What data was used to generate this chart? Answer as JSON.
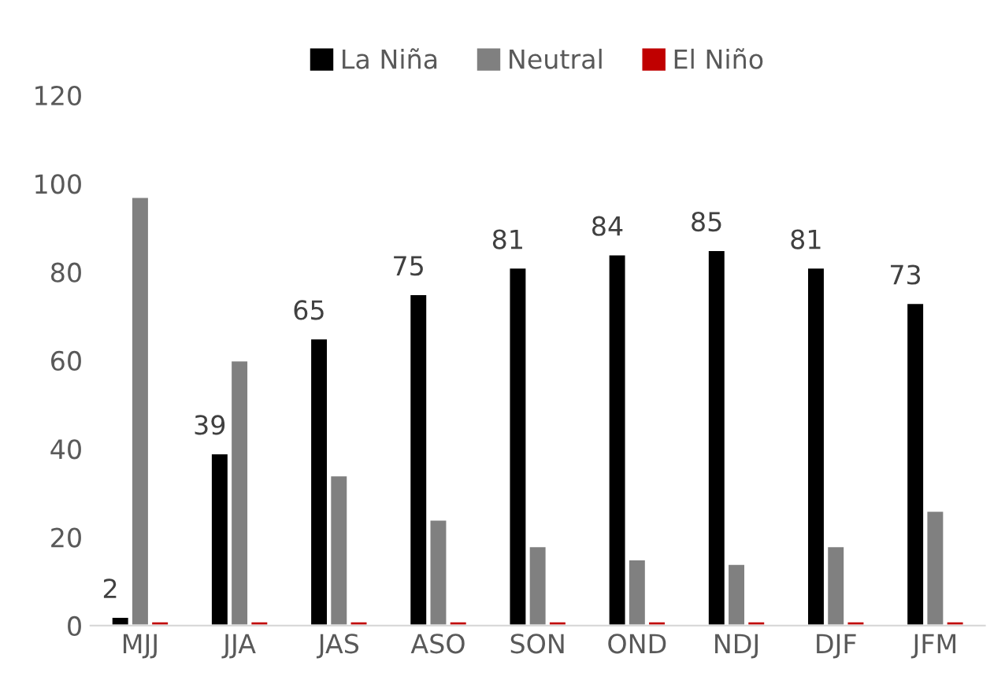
{
  "chart_data": {
    "type": "bar",
    "categories": [
      "MJJ",
      "JJA",
      "JAS",
      "ASO",
      "SON",
      "OND",
      "NDJ",
      "DJF",
      "JFM"
    ],
    "series": [
      {
        "name": "La Niña",
        "color": "#000000",
        "values": [
          2,
          39,
          65,
          75,
          81,
          84,
          85,
          81,
          73
        ],
        "value_labels": [
          "2",
          "39",
          "65",
          "75",
          "81",
          "84",
          "85",
          "81",
          "73"
        ]
      },
      {
        "name": "Neutral",
        "color": "#808080",
        "values": [
          97,
          60,
          34,
          24,
          18,
          15,
          14,
          18,
          26
        ]
      },
      {
        "name": "El Niño",
        "color": "#c00000",
        "values": [
          1,
          1,
          1,
          1,
          1,
          1,
          1,
          1,
          1
        ]
      }
    ],
    "ylim": [
      0,
      120
    ],
    "yticks": [
      0,
      20,
      40,
      60,
      80,
      100,
      120
    ],
    "grid": false,
    "legend": "top"
  }
}
